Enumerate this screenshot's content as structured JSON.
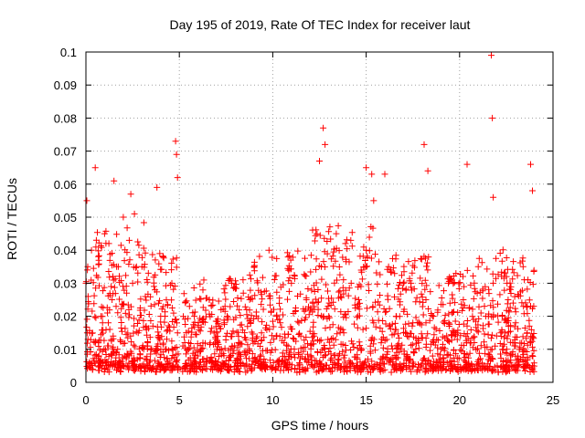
{
  "chart_data": {
    "type": "scatter",
    "title": "Day 195 of 2019, Rate Of TEC Index for receiver laut",
    "xlabel": "GPS time / hours",
    "ylabel": "ROTI / TECUs",
    "xlim": [
      0,
      25
    ],
    "ylim": [
      0,
      0.1
    ],
    "grid": true,
    "marker": "+",
    "color": "#ff0000",
    "x_ticks": [
      0,
      5,
      10,
      15,
      20,
      25
    ],
    "x_tick_labels": [
      "0",
      "5",
      "10",
      "15",
      "20",
      "25"
    ],
    "y_ticks": [
      0,
      0.01,
      0.02,
      0.03,
      0.04,
      0.05,
      0.06,
      0.07,
      0.08,
      0.09,
      0.1
    ],
    "y_tick_labels": [
      "0",
      "0.01",
      "0.02",
      "0.03",
      "0.04",
      "0.05",
      "0.06",
      "0.07",
      "0.08",
      "0.09",
      "0.1"
    ],
    "series": [
      {
        "name": "ROTI",
        "note": "dense band of ~0.005-0.03 TECU/s from 0 to 24 h with gap near 5 h; representative points",
        "x": [
          0.0,
          0.1,
          0.2,
          0.3,
          0.5,
          0.8,
          1.0,
          1.2,
          1.4,
          1.7,
          2.0,
          2.3,
          2.5,
          2.8,
          3.0,
          3.3,
          3.7,
          4.0,
          4.3,
          4.6,
          4.9,
          5.5,
          5.8,
          6.2,
          6.6,
          7.0,
          7.4,
          7.8,
          8.2,
          8.6,
          9.0,
          9.4,
          9.8,
          10.2,
          10.6,
          11.0,
          11.4,
          11.8,
          12.2,
          12.6,
          13.0,
          13.4,
          13.8,
          14.2,
          14.6,
          15.0,
          15.4,
          15.8,
          16.2,
          16.6,
          17.0,
          17.4,
          17.8,
          18.2,
          18.6,
          19.0,
          19.4,
          19.8,
          20.2,
          20.6,
          21.0,
          21.4,
          21.8,
          22.2,
          22.6,
          23.0,
          23.4,
          23.8,
          0.05,
          0.5,
          1.5,
          2.4,
          2.6,
          3.8,
          4.8,
          4.85,
          4.9,
          12.5,
          12.7,
          12.8,
          15.0,
          15.3,
          15.4,
          16.0,
          18.1,
          18.3,
          20.4,
          21.7,
          21.75,
          21.8,
          23.8,
          23.9,
          3.0,
          9.5,
          11.0,
          13.5,
          17.5,
          19.0,
          22.5,
          6.0,
          8.0,
          14.5
        ],
        "y": [
          0.03,
          0.035,
          0.015,
          0.04,
          0.012,
          0.02,
          0.045,
          0.018,
          0.025,
          0.01,
          0.05,
          0.022,
          0.03,
          0.015,
          0.035,
          0.012,
          0.028,
          0.02,
          0.01,
          0.03,
          0.015,
          0.012,
          0.02,
          0.01,
          0.025,
          0.015,
          0.018,
          0.03,
          0.012,
          0.022,
          0.035,
          0.015,
          0.04,
          0.02,
          0.012,
          0.03,
          0.018,
          0.025,
          0.014,
          0.035,
          0.02,
          0.045,
          0.015,
          0.03,
          0.025,
          0.04,
          0.018,
          0.012,
          0.035,
          0.02,
          0.015,
          0.03,
          0.012,
          0.025,
          0.02,
          0.01,
          0.03,
          0.015,
          0.025,
          0.012,
          0.035,
          0.02,
          0.03,
          0.015,
          0.025,
          0.018,
          0.035,
          0.012,
          0.055,
          0.065,
          0.061,
          0.057,
          0.051,
          0.059,
          0.073,
          0.069,
          0.062,
          0.067,
          0.077,
          0.072,
          0.065,
          0.063,
          0.055,
          0.063,
          0.072,
          0.064,
          0.066,
          0.099,
          0.08,
          0.056,
          0.066,
          0.058,
          0.005,
          0.006,
          0.004,
          0.007,
          0.005,
          0.006,
          0.005,
          0.008,
          0.006,
          0.007
        ]
      }
    ]
  }
}
